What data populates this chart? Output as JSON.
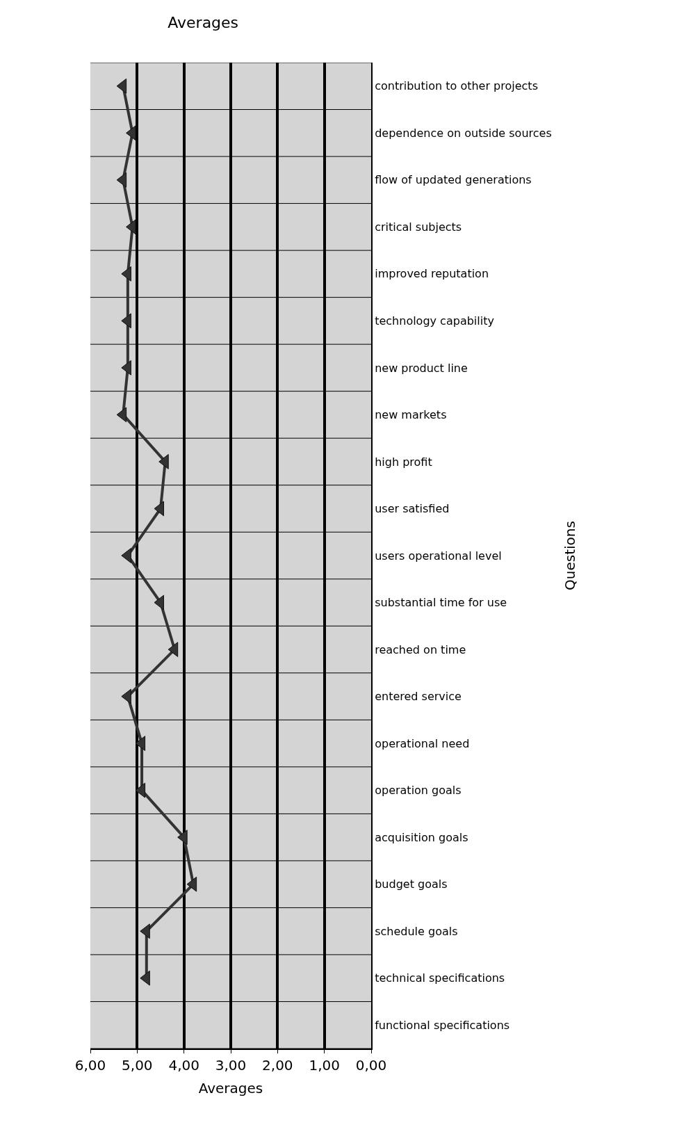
{
  "chart_data": {
    "type": "line",
    "orientation": "horizontal",
    "title": "Averages",
    "xlabel": "Averages",
    "ylabel": "Questions",
    "categories": [
      "contribution to other projects",
      "dependence on outside sources",
      "flow of updated generations",
      "critical subjects",
      "improved reputation",
      "technology capability",
      "new product line",
      "new markets",
      "high profit",
      "user satisfied",
      "users operational level",
      "substantial time for use",
      "reached on time",
      "entered service",
      "operational need",
      "operation goals",
      "acquisition goals",
      "budget goals",
      "schedule goals",
      "technical specifications",
      "functional specifications"
    ],
    "values": [
      5.3,
      5.1,
      5.3,
      5.1,
      5.2,
      5.2,
      5.2,
      5.3,
      4.4,
      4.5,
      5.2,
      4.5,
      4.2,
      5.2,
      4.9,
      4.9,
      4.0,
      3.8,
      4.8,
      4.8,
      null
    ],
    "color": "#333333",
    "marker": "triangle",
    "line_style": "solid",
    "grid": true,
    "xlim": [
      6,
      0
    ],
    "xticks": [
      {
        "value": 6,
        "label": "6,00"
      },
      {
        "value": 5,
        "label": "5,00"
      },
      {
        "value": 4,
        "label": "4,00"
      },
      {
        "value": 3,
        "label": "3,00"
      },
      {
        "value": 2,
        "label": "2,00"
      },
      {
        "value": 1,
        "label": "1,00"
      },
      {
        "value": 0,
        "label": "0,00"
      }
    ]
  }
}
